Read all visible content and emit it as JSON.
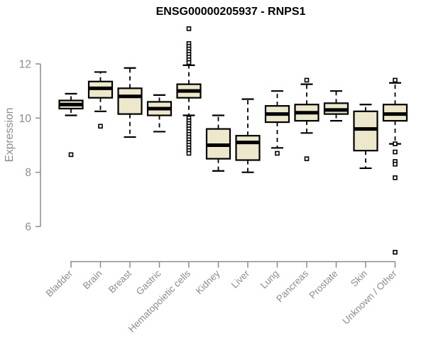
{
  "chart_data": {
    "type": "boxplot",
    "title": "ENSG00000205937 - RNPS1",
    "ylabel": "Expression",
    "xlabel": "",
    "axis_range": [
      6,
      12
    ],
    "yticks": [
      6,
      8,
      10,
      12
    ],
    "grid": "off",
    "legend": "none",
    "colors": {
      "box_fill": "#EDE7CC",
      "box_stroke": "#000000",
      "median": "#000000",
      "axis": "#8c8c8c",
      "tick_text": "#8c8c8c",
      "title_text": "#000000",
      "outlier_fill": "#ffffff"
    },
    "categories": [
      "Bladder",
      "Brain",
      "Breast",
      "Gastric",
      "Hematopoietic cells",
      "Kidney",
      "Liver",
      "Lung",
      "Pancreas",
      "Prostate",
      "Skin",
      "Unknown / Other"
    ],
    "series": [
      {
        "name": "Bladder",
        "whisker_low": 10.1,
        "q1": 10.35,
        "median": 10.5,
        "q3": 10.65,
        "whisker_high": 10.9,
        "outliers": [
          8.65
        ]
      },
      {
        "name": "Brain",
        "whisker_low": 10.25,
        "q1": 10.75,
        "median": 11.1,
        "q3": 11.35,
        "whisker_high": 11.7,
        "outliers": [
          9.7
        ]
      },
      {
        "name": "Breast",
        "whisker_low": 9.3,
        "q1": 10.15,
        "median": 10.8,
        "q3": 11.1,
        "whisker_high": 11.85,
        "outliers": []
      },
      {
        "name": "Gastric",
        "whisker_low": 9.5,
        "q1": 10.1,
        "median": 10.35,
        "q3": 10.6,
        "whisker_high": 10.85,
        "outliers": []
      },
      {
        "name": "Hematopoietic cells",
        "whisker_low": 10.1,
        "q1": 10.75,
        "median": 11.0,
        "q3": 11.25,
        "whisker_high": 11.95,
        "outliers": [
          13.3,
          12.75,
          12.65,
          12.55,
          12.45,
          12.35,
          12.25,
          12.15,
          12.05,
          10.0,
          9.9,
          9.8,
          9.7,
          9.6,
          9.5,
          9.4,
          9.3,
          9.2,
          9.1,
          9.0,
          8.9,
          8.8,
          8.7
        ]
      },
      {
        "name": "Kidney",
        "whisker_low": 8.05,
        "q1": 8.5,
        "median": 9.0,
        "q3": 9.6,
        "whisker_high": 10.1,
        "outliers": []
      },
      {
        "name": "Liver",
        "whisker_low": 8.0,
        "q1": 8.45,
        "median": 9.1,
        "q3": 9.35,
        "whisker_high": 10.7,
        "outliers": []
      },
      {
        "name": "Lung",
        "whisker_low": 8.9,
        "q1": 9.85,
        "median": 10.15,
        "q3": 10.45,
        "whisker_high": 11.0,
        "outliers": [
          8.7
        ]
      },
      {
        "name": "Pancreas",
        "whisker_low": 9.45,
        "q1": 9.9,
        "median": 10.2,
        "q3": 10.5,
        "whisker_high": 11.25,
        "outliers": [
          11.4,
          8.5
        ]
      },
      {
        "name": "Prostate",
        "whisker_low": 9.9,
        "q1": 10.15,
        "median": 10.3,
        "q3": 10.55,
        "whisker_high": 11.0,
        "outliers": []
      },
      {
        "name": "Skin",
        "whisker_low": 8.15,
        "q1": 8.8,
        "median": 9.6,
        "q3": 10.25,
        "whisker_high": 10.5,
        "outliers": []
      },
      {
        "name": "Unknown / Other",
        "whisker_low": 9.05,
        "q1": 9.9,
        "median": 10.15,
        "q3": 10.5,
        "whisker_high": 11.3,
        "outliers": [
          11.4,
          9.05,
          8.75,
          8.4,
          8.3,
          7.8,
          5.05
        ]
      }
    ]
  }
}
